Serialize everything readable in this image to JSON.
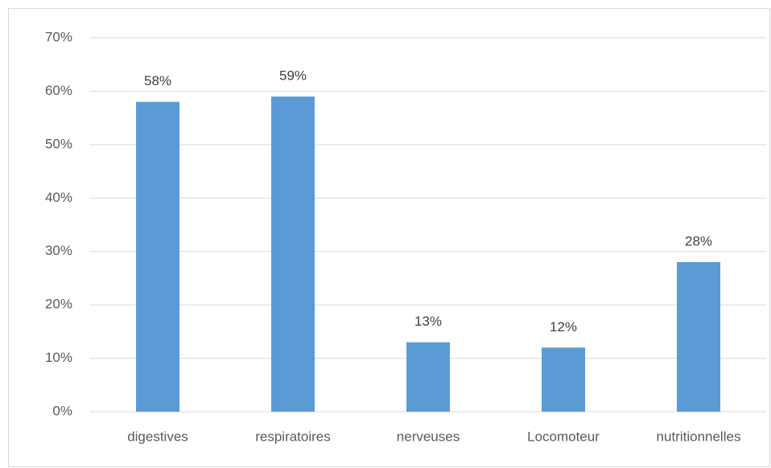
{
  "chart_data": {
    "type": "bar",
    "categories": [
      "digestives",
      "respiratoires",
      "nerveuses",
      "Locomoteur",
      "nutritionnelles"
    ],
    "values": [
      58,
      59,
      13,
      12,
      28
    ],
    "value_labels": [
      "58%",
      "59%",
      "13%",
      "12%",
      "28%"
    ],
    "color": "#5b9bd5",
    "ylim": [
      0,
      70
    ],
    "yticks": [
      {
        "value": 0,
        "label": "0%"
      },
      {
        "value": 10,
        "label": "10%"
      },
      {
        "value": 20,
        "label": "20%"
      },
      {
        "value": 30,
        "label": "30%"
      },
      {
        "value": 40,
        "label": "40%"
      },
      {
        "value": 50,
        "label": "50%"
      },
      {
        "value": 60,
        "label": "60%"
      },
      {
        "value": 70,
        "label": "70%"
      }
    ],
    "grid": true
  }
}
